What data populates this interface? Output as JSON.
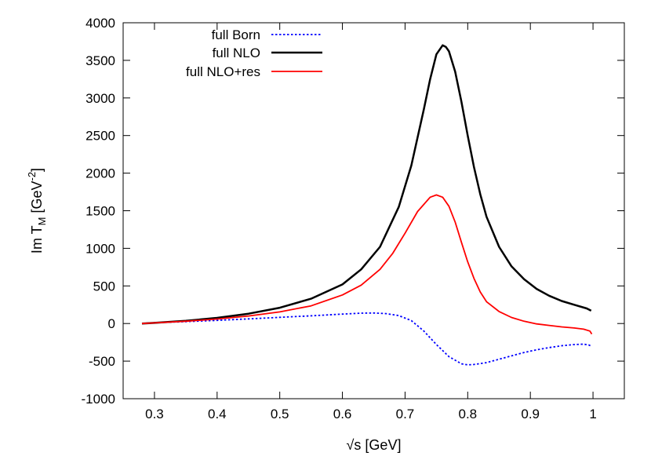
{
  "chart_data": {
    "type": "line",
    "xlabel": "√s [GeV]",
    "ylabel": {
      "base": "Im T",
      "sub": "M",
      "unit_open": " [GeV",
      "sup": "-2",
      "unit_close": "]"
    },
    "xlim": [
      0.25,
      1.05
    ],
    "ylim": [
      -1000,
      4000
    ],
    "xticks": [
      0.3,
      0.4,
      0.5,
      0.6,
      0.7,
      0.8,
      0.9,
      1.0
    ],
    "xtick_labels": [
      "0.3",
      "0.4",
      "0.5",
      "0.6",
      "0.7",
      "0.8",
      "0.9",
      "1"
    ],
    "yticks": [
      -1000,
      -500,
      0,
      500,
      1000,
      1500,
      2000,
      2500,
      3000,
      3500,
      4000
    ],
    "ytick_labels": [
      "-1000",
      "-500",
      "0",
      "500",
      "1000",
      "1500",
      "2000",
      "2500",
      "3000",
      "3500",
      "4000"
    ],
    "grid": false,
    "legend_position": "top-left",
    "series": [
      {
        "name": "full Born",
        "color": "#0000ff",
        "style": "dotted",
        "points": [
          [
            0.28,
            0
          ],
          [
            0.3,
            10
          ],
          [
            0.35,
            25
          ],
          [
            0.4,
            42
          ],
          [
            0.45,
            62
          ],
          [
            0.5,
            82
          ],
          [
            0.55,
            102
          ],
          [
            0.6,
            125
          ],
          [
            0.63,
            138
          ],
          [
            0.65,
            140
          ],
          [
            0.67,
            132
          ],
          [
            0.69,
            105
          ],
          [
            0.71,
            40
          ],
          [
            0.73,
            -100
          ],
          [
            0.75,
            -280
          ],
          [
            0.77,
            -440
          ],
          [
            0.79,
            -535
          ],
          [
            0.8,
            -550
          ],
          [
            0.81,
            -545
          ],
          [
            0.83,
            -520
          ],
          [
            0.85,
            -475
          ],
          [
            0.87,
            -430
          ],
          [
            0.89,
            -385
          ],
          [
            0.91,
            -350
          ],
          [
            0.93,
            -320
          ],
          [
            0.95,
            -295
          ],
          [
            0.97,
            -280
          ],
          [
            0.985,
            -275
          ],
          [
            0.993,
            -285
          ],
          [
            0.997,
            -300
          ]
        ]
      },
      {
        "name": "full NLO",
        "color": "#000000",
        "style": "solid",
        "points": [
          [
            0.28,
            0
          ],
          [
            0.3,
            8
          ],
          [
            0.35,
            35
          ],
          [
            0.4,
            75
          ],
          [
            0.45,
            130
          ],
          [
            0.5,
            210
          ],
          [
            0.55,
            330
          ],
          [
            0.6,
            520
          ],
          [
            0.63,
            720
          ],
          [
            0.66,
            1020
          ],
          [
            0.69,
            1550
          ],
          [
            0.71,
            2100
          ],
          [
            0.73,
            2850
          ],
          [
            0.74,
            3250
          ],
          [
            0.75,
            3580
          ],
          [
            0.76,
            3700
          ],
          [
            0.765,
            3680
          ],
          [
            0.77,
            3620
          ],
          [
            0.78,
            3350
          ],
          [
            0.79,
            2950
          ],
          [
            0.8,
            2500
          ],
          [
            0.81,
            2080
          ],
          [
            0.82,
            1720
          ],
          [
            0.83,
            1420
          ],
          [
            0.85,
            1020
          ],
          [
            0.87,
            760
          ],
          [
            0.89,
            590
          ],
          [
            0.91,
            460
          ],
          [
            0.93,
            370
          ],
          [
            0.95,
            300
          ],
          [
            0.97,
            250
          ],
          [
            0.99,
            200
          ],
          [
            0.997,
            170
          ]
        ]
      },
      {
        "name": "full NLO+res",
        "color": "#ff0000",
        "style": "solid",
        "points": [
          [
            0.28,
            0
          ],
          [
            0.3,
            8
          ],
          [
            0.35,
            30
          ],
          [
            0.4,
            60
          ],
          [
            0.45,
            100
          ],
          [
            0.5,
            155
          ],
          [
            0.55,
            235
          ],
          [
            0.6,
            380
          ],
          [
            0.63,
            510
          ],
          [
            0.66,
            720
          ],
          [
            0.68,
            930
          ],
          [
            0.7,
            1200
          ],
          [
            0.72,
            1490
          ],
          [
            0.74,
            1680
          ],
          [
            0.75,
            1710
          ],
          [
            0.76,
            1680
          ],
          [
            0.77,
            1560
          ],
          [
            0.78,
            1350
          ],
          [
            0.79,
            1080
          ],
          [
            0.8,
            820
          ],
          [
            0.81,
            600
          ],
          [
            0.82,
            420
          ],
          [
            0.83,
            290
          ],
          [
            0.85,
            160
          ],
          [
            0.87,
            80
          ],
          [
            0.89,
            30
          ],
          [
            0.91,
            -5
          ],
          [
            0.93,
            -25
          ],
          [
            0.95,
            -45
          ],
          [
            0.97,
            -60
          ],
          [
            0.985,
            -75
          ],
          [
            0.995,
            -100
          ],
          [
            0.998,
            -140
          ]
        ]
      }
    ]
  }
}
